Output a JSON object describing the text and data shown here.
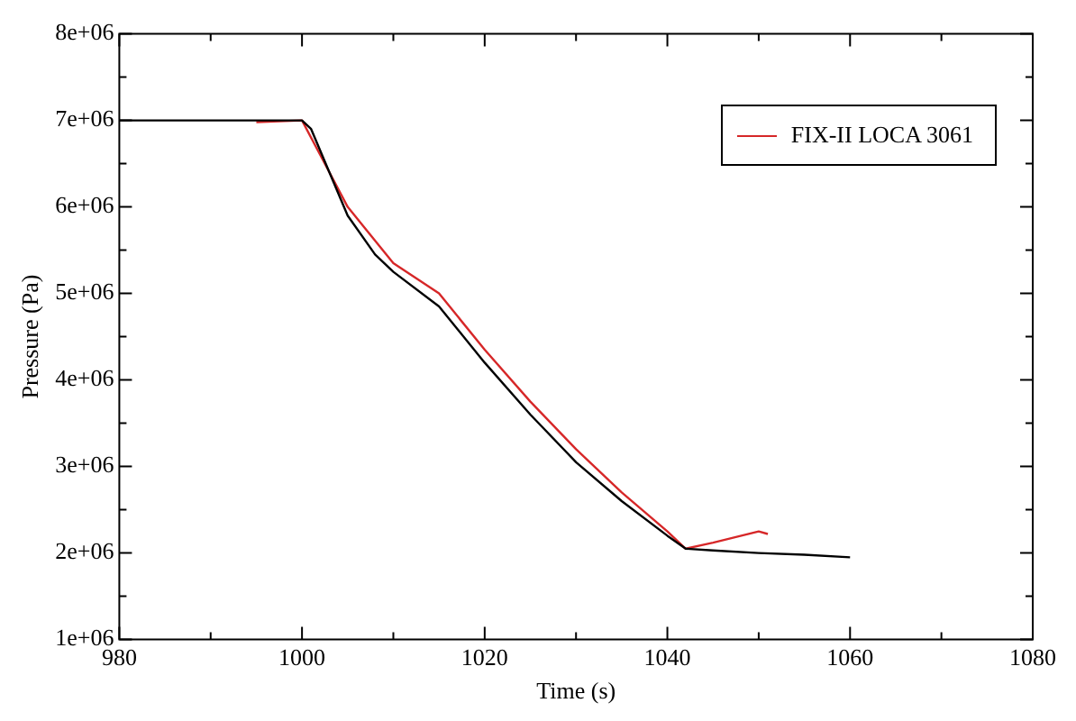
{
  "chart_data": {
    "type": "line",
    "xlabel": "Time (s)",
    "ylabel": "Pressure (Pa)",
    "xlim": [
      980,
      1080
    ],
    "xticks": [
      980,
      1000,
      1020,
      1040,
      1060,
      1080
    ],
    "ylim": [
      1000000,
      8000000
    ],
    "yticks": [
      {
        "value": 1000000,
        "label": "1e+06"
      },
      {
        "value": 2000000,
        "label": "2e+06"
      },
      {
        "value": 3000000,
        "label": "3e+06"
      },
      {
        "value": 4000000,
        "label": "4e+06"
      },
      {
        "value": 5000000,
        "label": "5e+06"
      },
      {
        "value": 6000000,
        "label": "6e+06"
      },
      {
        "value": 7000000,
        "label": "7e+06"
      },
      {
        "value": 8000000,
        "label": "8e+06"
      }
    ],
    "grid": false,
    "legend": "top right",
    "marker": "none",
    "line_style": "solid",
    "series": [
      {
        "color": "#000000",
        "x": [
          980,
          1000,
          1001,
          1003,
          1005,
          1008,
          1010,
          1015,
          1020,
          1025,
          1030,
          1035,
          1040,
          1042,
          1045,
          1050,
          1055,
          1060
        ],
        "values": [
          7000000,
          7000000,
          6900000,
          6400000,
          5900000,
          5450000,
          5250000,
          4850000,
          4200000,
          3600000,
          3050000,
          2600000,
          2200000,
          2050000,
          2030000,
          2000000,
          1980000,
          1950000
        ]
      },
      {
        "name": "FIX-II LOCA 3061",
        "color": "#d62728",
        "x": [
          995,
          1000,
          1002,
          1005,
          1010,
          1015,
          1020,
          1025,
          1030,
          1035,
          1040,
          1042,
          1045,
          1050,
          1051
        ],
        "values": [
          6980000,
          7000000,
          6600000,
          6000000,
          5350000,
          5000000,
          4350000,
          3750000,
          3200000,
          2700000,
          2250000,
          2050000,
          2120000,
          2250000,
          2220000
        ]
      }
    ]
  }
}
